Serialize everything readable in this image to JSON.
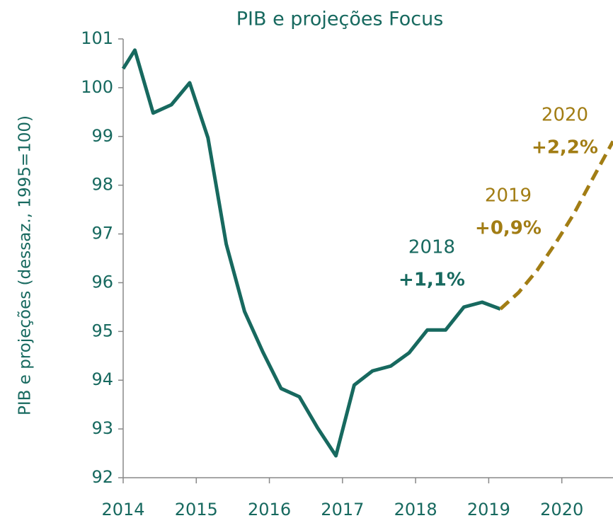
{
  "chart_data": {
    "type": "line",
    "title": "PIB e projeções Focus",
    "y_label": "PIB e projeções (dessaz.,  1995=100)",
    "xlim": [
      2014,
      2020.7
    ],
    "xticks": [
      2014,
      2015,
      2016,
      2017,
      2018,
      2019,
      2020
    ],
    "ylim": [
      92,
      101
    ],
    "yticks": [
      92,
      93,
      94,
      95,
      96,
      97,
      98,
      99,
      100,
      101
    ],
    "series": [
      {
        "color": "#17695f",
        "dashed": false,
        "x": [
          2014.0,
          2014.16,
          2014.41,
          2014.66,
          2014.91,
          2015.16,
          2015.41,
          2015.66,
          2015.91,
          2016.16,
          2016.41,
          2016.66,
          2016.91,
          2017.16,
          2017.41,
          2017.66,
          2017.91,
          2018.16,
          2018.41,
          2018.66,
          2018.91,
          2019.16
        ],
        "values": [
          100.39,
          100.77,
          99.48,
          99.65,
          100.1,
          98.97,
          96.79,
          95.41,
          94.58,
          93.83,
          93.66,
          93.02,
          92.45,
          93.9,
          94.19,
          94.29,
          94.56,
          95.03,
          95.03,
          95.5,
          95.6,
          95.46
        ]
      },
      {
        "color": "#a27d14",
        "dashed": true,
        "x": [
          2019.16,
          2019.41,
          2019.66,
          2019.91,
          2020.16,
          2020.41,
          2020.7
        ],
        "values": [
          95.46,
          95.8,
          96.25,
          96.8,
          97.4,
          98.1,
          98.9
        ]
      }
    ],
    "annotations": [
      {
        "year": "2018",
        "growth": "+1,1%",
        "color": "#17695f"
      },
      {
        "year": "2019",
        "growth": "+0,9%",
        "color": "#a27d14"
      },
      {
        "year": "2020",
        "growth": "+2,2%",
        "color": "#a27d14"
      }
    ]
  }
}
